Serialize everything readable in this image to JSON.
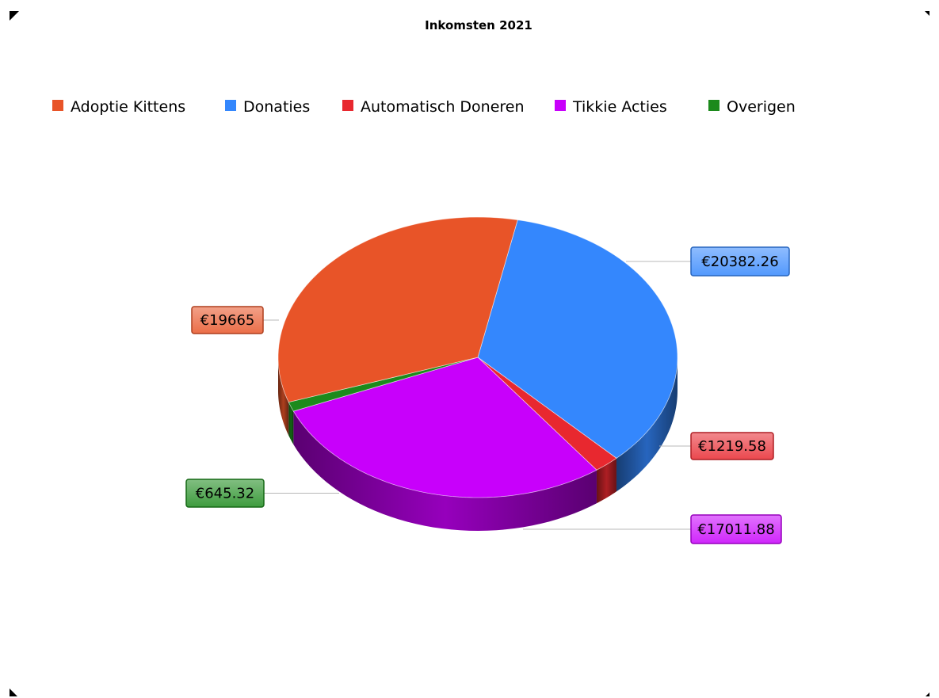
{
  "chart_data": {
    "type": "pie",
    "title": "Inkomsten 2021",
    "three_d": true,
    "legend_position": "top",
    "slices": [
      {
        "name": "Adoptie Kittens",
        "value": 19665,
        "label": "€19665",
        "color": "#e85428"
      },
      {
        "name": "Donaties",
        "value": 20382.26,
        "label": "€20382.26",
        "color": "#3487fd"
      },
      {
        "name": "Automatisch Doneren",
        "value": 1219.58,
        "label": "€1219.58",
        "color": "#e8282f"
      },
      {
        "name": "Tikkie Acties",
        "value": 17011.88,
        "label": "€17011.88",
        "color": "#c800fb"
      },
      {
        "name": "Overigen",
        "value": 645.32,
        "label": "€645.32",
        "color": "#1c8a1c"
      }
    ]
  }
}
